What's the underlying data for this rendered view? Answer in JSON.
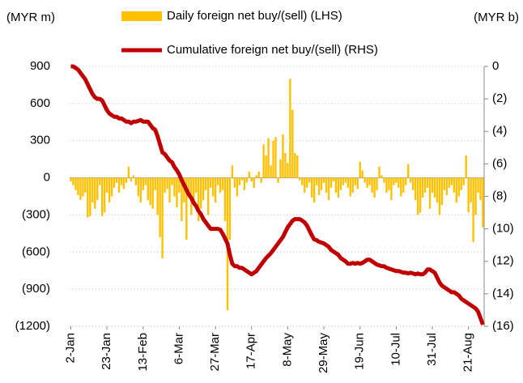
{
  "chart_data": {
    "type": "combo",
    "y_label": "(MYR m)",
    "y2_label": "(MYR b)",
    "categories": [
      "2-Jan",
      null,
      null,
      null,
      null,
      null,
      null,
      null,
      null,
      null,
      null,
      null,
      null,
      null,
      null,
      "23-Jan",
      null,
      null,
      null,
      null,
      null,
      null,
      null,
      null,
      null,
      null,
      null,
      null,
      null,
      null,
      "13-Feb",
      null,
      null,
      null,
      null,
      null,
      null,
      null,
      null,
      null,
      null,
      null,
      null,
      null,
      null,
      "6-Mar",
      null,
      null,
      null,
      null,
      null,
      null,
      null,
      null,
      null,
      null,
      null,
      null,
      null,
      null,
      "27-Mar",
      null,
      null,
      null,
      null,
      null,
      null,
      null,
      null,
      null,
      null,
      null,
      null,
      null,
      null,
      "17-Apr",
      null,
      null,
      null,
      null,
      null,
      null,
      null,
      null,
      null,
      null,
      null,
      null,
      null,
      null,
      "8-May",
      null,
      null,
      null,
      null,
      null,
      null,
      null,
      null,
      null,
      null,
      null,
      null,
      null,
      null,
      "29-May",
      null,
      null,
      null,
      null,
      null,
      null,
      null,
      null,
      null,
      null,
      null,
      null,
      null,
      null,
      "19-Jun",
      null,
      null,
      null,
      null,
      null,
      null,
      null,
      null,
      null,
      null,
      null,
      null,
      null,
      null,
      "10-Jul",
      null,
      null,
      null,
      null,
      null,
      null,
      null,
      null,
      null,
      null,
      null,
      null,
      null,
      null,
      "31-Jul",
      null,
      null,
      null,
      null,
      null,
      null,
      null,
      null,
      null,
      null,
      null,
      null,
      null,
      null,
      "21-Aug",
      null,
      null,
      null,
      null,
      null,
      null
    ],
    "series": [
      {
        "name": "Daily foreign net buy/(sell) (LHS)",
        "type": "bar",
        "color": "#ffc000",
        "values": [
          -30,
          -60,
          -100,
          -140,
          -180,
          -150,
          -120,
          -320,
          -310,
          -200,
          -250,
          -180,
          -60,
          -310,
          -280,
          -120,
          -200,
          -150,
          -80,
          -40,
          -120,
          -60,
          -90,
          -40,
          90,
          -30,
          20,
          -60,
          -150,
          -200,
          -100,
          -60,
          -180,
          -220,
          -250,
          -100,
          -300,
          -480,
          -650,
          -120,
          -90,
          -200,
          -60,
          -150,
          -240,
          -120,
          -350,
          -200,
          -500,
          -150,
          -300,
          -200,
          -120,
          -350,
          -250,
          -180,
          -100,
          -300,
          -80,
          -150,
          -200,
          -60,
          -120,
          -100,
          -350,
          -1070,
          -500,
          100,
          -80,
          -150,
          -60,
          -20,
          -100,
          -40,
          50,
          -30,
          -80,
          20,
          50,
          -40,
          270,
          180,
          320,
          100,
          300,
          330,
          -40,
          150,
          350,
          200,
          120,
          800,
          550,
          200,
          180,
          -20,
          -60,
          -120,
          -80,
          -40,
          -160,
          -200,
          -60,
          -140,
          -100,
          -40,
          -120,
          -180,
          -80,
          -30,
          -120,
          -160,
          -100,
          -60,
          -40,
          -80,
          -150,
          -120,
          -60,
          -90,
          130,
          60,
          -40,
          -80,
          -60,
          -120,
          -160,
          -100,
          90,
          20,
          -40,
          -120,
          -100,
          -180,
          -60,
          -40,
          -80,
          -150,
          -120,
          -60,
          110,
          -40,
          -100,
          -180,
          -300,
          -280,
          -160,
          -120,
          -80,
          -250,
          -120,
          -160,
          -200,
          -300,
          -220,
          -100,
          -140,
          -80,
          -60,
          -120,
          -200,
          -150,
          -100,
          -60,
          180,
          -280,
          -200,
          -520,
          -300,
          -120,
          -180,
          -400
        ]
      },
      {
        "name": "Cumulative foreign net buy/(sell) (RHS)",
        "type": "line",
        "axis": "y2",
        "color": "#c00000",
        "values": [
          0,
          0,
          -0.1,
          -0.2,
          -0.4,
          -0.6,
          -0.8,
          -1.1,
          -1.4,
          -1.7,
          -1.9,
          -2.0,
          -2.0,
          -2.1,
          -2.4,
          -2.7,
          -2.9,
          -3.0,
          -3.1,
          -3.1,
          -3.2,
          -3.2,
          -3.3,
          -3.4,
          -3.4,
          -3.5,
          -3.4,
          -3.4,
          -3.35,
          -3.3,
          -3.4,
          -3.4,
          -3.4,
          -3.6,
          -3.8,
          -3.9,
          -4.3,
          -4.8,
          -5.3,
          -5.4,
          -5.6,
          -5.8,
          -5.9,
          -6.2,
          -6.4,
          -6.65,
          -7.0,
          -7.3,
          -7.6,
          -7.9,
          -8.1,
          -8.4,
          -8.6,
          -8.9,
          -9.1,
          -9.4,
          -9.6,
          -9.8,
          -10.0,
          -10.0,
          -10.0,
          -10.0,
          -10.05,
          -10.3,
          -10.6,
          -10.9,
          -11.6,
          -12.15,
          -12.3,
          -12.3,
          -12.4,
          -12.4,
          -12.5,
          -12.6,
          -12.7,
          -12.8,
          -12.7,
          -12.6,
          -12.4,
          -12.2,
          -12.0,
          -11.8,
          -11.65,
          -11.5,
          -11.3,
          -11.1,
          -10.9,
          -10.7,
          -10.5,
          -10.2,
          -9.9,
          -9.7,
          -9.5,
          -9.4,
          -9.4,
          -9.4,
          -9.5,
          -9.6,
          -9.8,
          -10.1,
          -10.4,
          -10.65,
          -10.7,
          -10.8,
          -10.85,
          -10.9,
          -11.0,
          -11.1,
          -11.3,
          -11.4,
          -11.5,
          -11.6,
          -11.8,
          -11.9,
          -12.0,
          -12.15,
          -12.15,
          -12.1,
          -12.15,
          -12.1,
          -12.15,
          -12.1,
          -12.0,
          -11.9,
          -11.9,
          -12.0,
          -12.1,
          -12.2,
          -12.25,
          -12.3,
          -12.3,
          -12.4,
          -12.45,
          -12.5,
          -12.55,
          -12.6,
          -12.6,
          -12.65,
          -12.7,
          -12.7,
          -12.75,
          -12.7,
          -12.75,
          -12.8,
          -12.75,
          -12.8,
          -12.8,
          -12.7,
          -12.5,
          -12.5,
          -12.6,
          -12.7,
          -13.0,
          -13.3,
          -13.5,
          -13.6,
          -13.7,
          -13.8,
          -13.9,
          -13.9,
          -14.0,
          -14.1,
          -14.3,
          -14.4,
          -14.5,
          -14.6,
          -14.7,
          -14.8,
          -14.9,
          -15.1,
          -15.5,
          -15.9
        ]
      }
    ],
    "ylim": [
      -1200,
      900
    ],
    "yticks": [
      900,
      600,
      300,
      0,
      {
        "value": -300,
        "label": "(300)"
      },
      {
        "value": -600,
        "label": "(600)"
      },
      {
        "value": -900,
        "label": "(900)"
      },
      {
        "value": -1200,
        "label": "(1200)"
      }
    ],
    "y2lim": [
      -16,
      0
    ],
    "y2ticks": [
      0,
      {
        "value": -2,
        "label": "(2)"
      },
      {
        "value": -4,
        "label": "(4)"
      },
      {
        "value": -6,
        "label": "(6)"
      },
      {
        "value": -8,
        "label": "(8)"
      },
      {
        "value": -10,
        "label": "(10)"
      },
      {
        "value": -12,
        "label": "(12)"
      },
      {
        "value": -14,
        "label": "(14)"
      },
      {
        "value": -16,
        "label": "(16)"
      }
    ],
    "negative_label_color": "#ff0000",
    "grid": true
  }
}
